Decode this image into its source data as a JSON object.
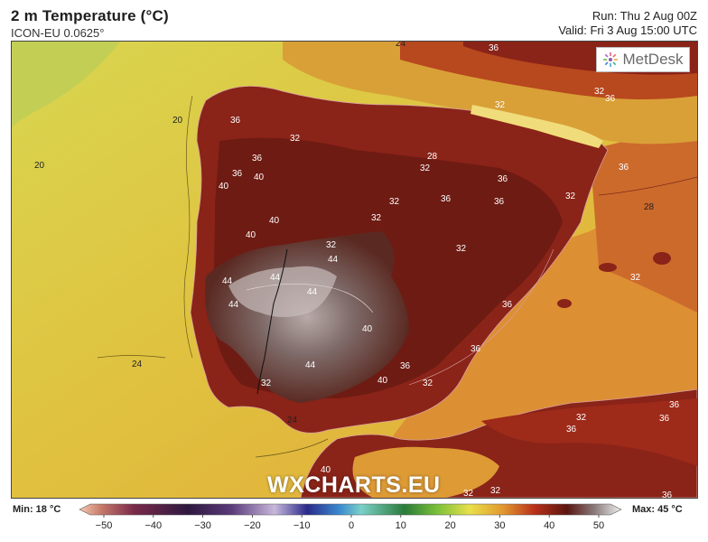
{
  "header": {
    "title": "2 m Temperature (°C)",
    "model": "ICON-EU 0.0625°",
    "run": "Run: Thu 2 Aug 00Z",
    "valid": "Valid: Fri 3 Aug 15:00 UTC"
  },
  "logo": {
    "text": "MetDesk"
  },
  "watermark": "WXCHARTS.EU",
  "legend": {
    "min": "Min: 18 °C",
    "max": "Max: 45 °C",
    "ticks": [
      "−50",
      "−40",
      "−30",
      "−20",
      "−10",
      "0",
      "10",
      "20",
      "30",
      "40",
      "50"
    ]
  },
  "contour_labels": {
    "l20a": "20",
    "l20b": "20",
    "l24a": "24",
    "l24b": "24",
    "l24c": "24",
    "l28a": "28",
    "l28b": "28",
    "l32a": "32",
    "l32b": "32",
    "l32c": "32",
    "l32d": "32",
    "l32e": "32",
    "l32f": "32",
    "l32g": "32",
    "l32h": "32",
    "l32i": "32",
    "l32j": "32",
    "l32k": "32",
    "l32l": "32",
    "l32m": "32",
    "l32n": "32",
    "l32o": "32",
    "l36a": "36",
    "l36b": "36",
    "l36c": "36",
    "l36d": "36",
    "l36e": "36",
    "l36f": "36",
    "l36g": "36",
    "l36h": "36",
    "l36i": "36",
    "l36j": "36",
    "l36k": "36",
    "l36l": "36",
    "l36m": "36",
    "l36n": "36",
    "l36o": "36",
    "l36p": "36",
    "l36q": "36",
    "l40a": "40",
    "l40b": "40",
    "l40c": "40",
    "l40d": "40",
    "l40e": "40",
    "l40f": "40",
    "l40g": "40",
    "l44a": "44",
    "l44b": "44",
    "l44c": "44",
    "l44d": "44",
    "l44e": "44",
    "l44f": "44"
  },
  "colors": {
    "sea_cool": "#dedc4f",
    "sea_mild": "#e3b539",
    "sea_warm": "#d88a2c",
    "land_hot": "#8a2318",
    "land_very_hot": "#6b1a12",
    "extreme": "#9b8d8d"
  }
}
